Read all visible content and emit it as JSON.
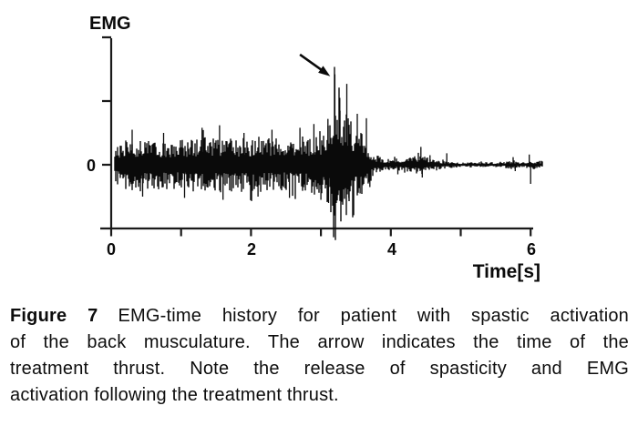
{
  "figure": {
    "caption": {
      "label": "Figure 7",
      "lines": [
        "EMG-time history for patient with spastic activation",
        "of the back musculature. The arrow indicates the time of the",
        "treatment thrust. Note the release of spasticity and EMG",
        "activation following the treatment thrust."
      ]
    }
  },
  "chart_data": {
    "type": "line",
    "title": "",
    "ylabel": "EMG",
    "xlabel": "Time[s]",
    "xlim": [
      0,
      6.2
    ],
    "ylim": [
      -1,
      2
    ],
    "grid": false,
    "x_ticks": [
      0,
      1,
      2,
      3,
      4,
      5,
      6
    ],
    "x_tick_labels": [
      "0",
      "2",
      "4",
      "6"
    ],
    "x_labeled_ticks": [
      0,
      2,
      4,
      6
    ],
    "y_ticks": [
      0,
      1,
      2
    ],
    "y_zero_label": "0",
    "colors": {
      "signal": "#0a0a0a",
      "axis": "#1a1a1a",
      "background": "#ffffff"
    },
    "signal": {
      "baseline": 0,
      "start_t": 0.05,
      "end_t": 6.17,
      "envelope": [
        [
          0.0,
          0.0
        ],
        [
          0.05,
          0.25
        ],
        [
          0.15,
          0.4
        ],
        [
          0.5,
          0.42
        ],
        [
          0.9,
          0.38
        ],
        [
          1.3,
          0.45
        ],
        [
          1.7,
          0.42
        ],
        [
          2.1,
          0.44
        ],
        [
          2.5,
          0.4
        ],
        [
          2.8,
          0.46
        ],
        [
          3.05,
          0.5
        ],
        [
          3.12,
          0.7
        ],
        [
          3.18,
          1.15
        ],
        [
          3.25,
          1.3
        ],
        [
          3.32,
          0.95
        ],
        [
          3.42,
          0.7
        ],
        [
          3.55,
          0.55
        ],
        [
          3.65,
          0.4
        ],
        [
          3.75,
          0.18
        ],
        [
          3.9,
          0.1
        ],
        [
          4.05,
          0.1
        ],
        [
          4.25,
          0.12
        ],
        [
          4.45,
          0.16
        ],
        [
          4.6,
          0.08
        ],
        [
          4.8,
          0.06
        ],
        [
          5.0,
          0.04
        ],
        [
          5.6,
          0.04
        ],
        [
          5.75,
          0.08
        ],
        [
          5.85,
          0.04
        ],
        [
          5.95,
          0.05
        ],
        [
          6.05,
          0.07
        ],
        [
          6.17,
          0.06
        ]
      ],
      "spikes": [
        [
          0.3,
          0.55
        ],
        [
          0.45,
          -0.5
        ],
        [
          0.75,
          0.5
        ],
        [
          1.05,
          -0.52
        ],
        [
          1.3,
          0.58
        ],
        [
          1.55,
          0.62
        ],
        [
          1.6,
          -0.55
        ],
        [
          1.9,
          0.5
        ],
        [
          2.1,
          -0.5
        ],
        [
          2.3,
          0.55
        ],
        [
          2.55,
          -0.52
        ],
        [
          2.7,
          0.58
        ],
        [
          2.9,
          0.64
        ],
        [
          3.0,
          -0.55
        ],
        [
          3.1,
          0.72
        ],
        [
          3.11,
          -0.6
        ],
        [
          3.2,
          1.42
        ],
        [
          3.22,
          -0.6
        ],
        [
          3.27,
          1.05
        ],
        [
          3.3,
          -0.58
        ],
        [
          3.37,
          1.27
        ],
        [
          3.4,
          -0.52
        ],
        [
          3.52,
          0.8
        ],
        [
          3.56,
          -0.45
        ],
        [
          3.65,
          0.73
        ],
        [
          3.7,
          -0.35
        ],
        [
          4.1,
          -0.15
        ],
        [
          4.43,
          0.28
        ],
        [
          4.45,
          -0.2
        ],
        [
          4.56,
          0.15
        ],
        [
          4.8,
          0.18
        ],
        [
          5.75,
          0.12
        ],
        [
          5.78,
          -0.1
        ],
        [
          5.98,
          0.16
        ],
        [
          6.0,
          -0.3
        ]
      ]
    },
    "arrow_annotation": {
      "from": [
        2.7,
        1.73
      ],
      "to": [
        3.07,
        1.44
      ],
      "target_t": 3.2
    }
  }
}
